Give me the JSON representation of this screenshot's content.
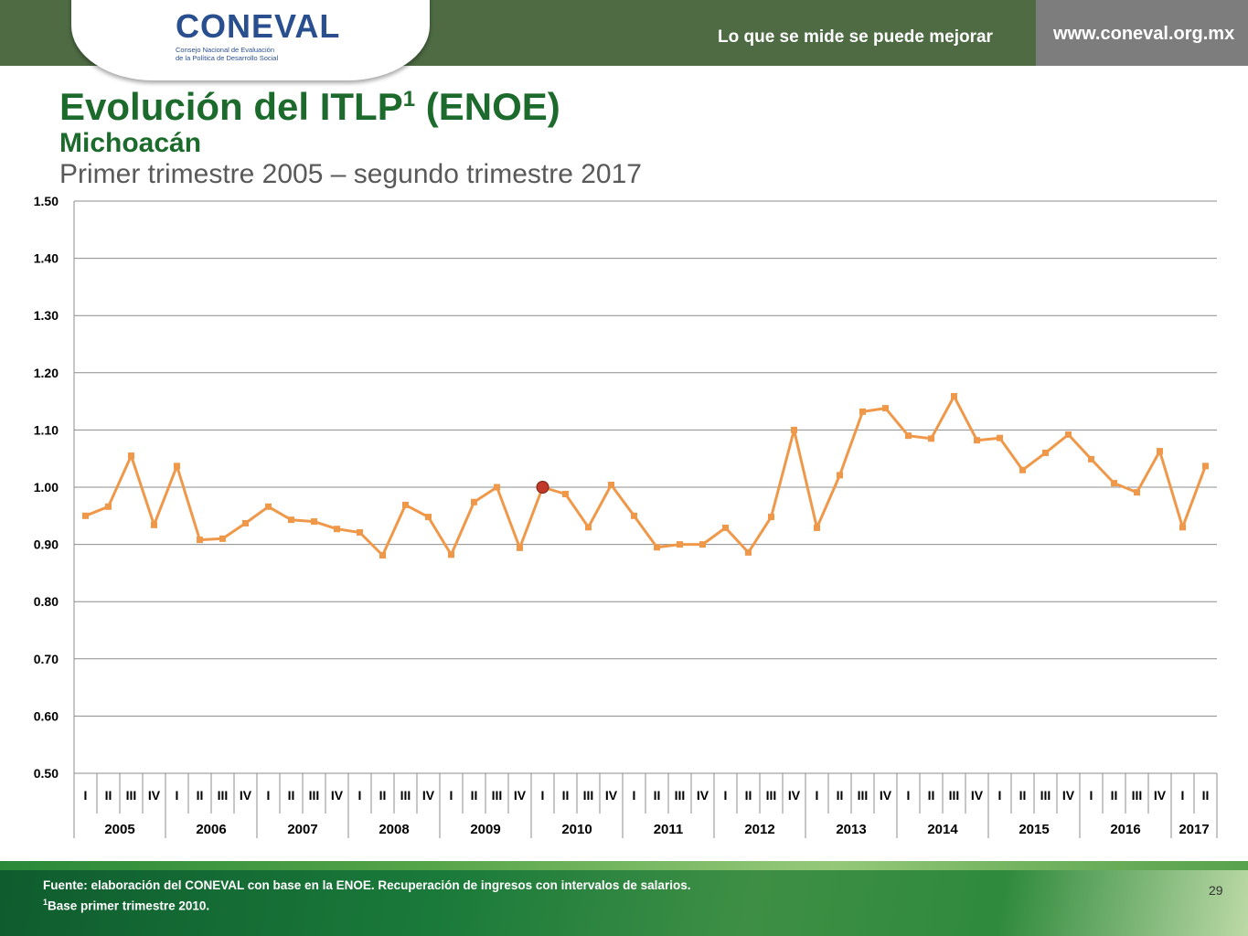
{
  "header": {
    "logo_text": "CONEVAL",
    "logo_subtitle_line1": "Consejo Nacional de Evaluación",
    "logo_subtitle_line2": "de la Política de Desarrollo Social",
    "tagline": "Lo que se mide se puede mejorar",
    "website": "www.coneval.org.mx",
    "colors": {
      "bar": "#4e6b44",
      "bar_right": "#7d7d7d",
      "title": "#1c6b2c"
    }
  },
  "slide": {
    "title": "Evolución del ITLP",
    "title_sup": "1",
    "title_suffix": " (ENOE)",
    "subtitle": "Michoacán",
    "period": "Primer trimestre 2005 – segundo trimestre 2017",
    "page_number": "29"
  },
  "footer": {
    "source": "Fuente: elaboración del CONEVAL con base en la ENOE. Recuperación de ingresos con intervalos de salarios.",
    "note_sup": "1",
    "note": "Base primer trimestre 2010."
  },
  "chart_data": {
    "type": "line",
    "ylim": [
      0.5,
      1.5
    ],
    "yticks": [
      "0.50",
      "0.60",
      "0.70",
      "0.80",
      "0.90",
      "1.00",
      "1.10",
      "1.20",
      "1.30",
      "1.40",
      "1.50"
    ],
    "grid": true,
    "quarters": [
      "I",
      "II",
      "III",
      "IV",
      "I",
      "II",
      "III",
      "IV",
      "I",
      "II",
      "III",
      "IV",
      "I",
      "II",
      "III",
      "IV",
      "I",
      "II",
      "III",
      "IV",
      "I",
      "II",
      "III",
      "IV",
      "I",
      "II",
      "III",
      "IV",
      "I",
      "II",
      "III",
      "IV",
      "I",
      "II",
      "III",
      "IV",
      "I",
      "II",
      "III",
      "IV",
      "I",
      "II",
      "III",
      "IV",
      "I",
      "II",
      "III",
      "IV",
      "I",
      "II"
    ],
    "years": [
      {
        "label": "2005",
        "quarters": 4
      },
      {
        "label": "2006",
        "quarters": 4
      },
      {
        "label": "2007",
        "quarters": 4
      },
      {
        "label": "2008",
        "quarters": 4
      },
      {
        "label": "2009",
        "quarters": 4
      },
      {
        "label": "2010",
        "quarters": 4
      },
      {
        "label": "2011",
        "quarters": 4
      },
      {
        "label": "2012",
        "quarters": 4
      },
      {
        "label": "2013",
        "quarters": 4
      },
      {
        "label": "2014",
        "quarters": 4
      },
      {
        "label": "2015",
        "quarters": 4
      },
      {
        "label": "2016",
        "quarters": 4
      },
      {
        "label": "2017",
        "quarters": 2
      }
    ],
    "series": [
      {
        "color": "#f0984a",
        "values": [
          0.95,
          0.966,
          1.055,
          0.934,
          1.037,
          0.908,
          0.91,
          0.937,
          0.966,
          0.943,
          0.94,
          0.927,
          0.921,
          0.881,
          0.969,
          0.948,
          0.882,
          0.974,
          1.0,
          0.894,
          1.0,
          0.988,
          0.93,
          1.004,
          0.95,
          0.895,
          0.9,
          0.9,
          0.929,
          0.886,
          0.948,
          1.1,
          0.929,
          1.021,
          1.132,
          1.138,
          1.09,
          1.085,
          1.159,
          1.082,
          1.086,
          1.03,
          1.06,
          1.092,
          1.049,
          1.007,
          0.991,
          1.063,
          0.93,
          1.037
        ]
      }
    ],
    "highlight": {
      "index": 20,
      "value": 1.0,
      "color": "#c0392b"
    }
  }
}
